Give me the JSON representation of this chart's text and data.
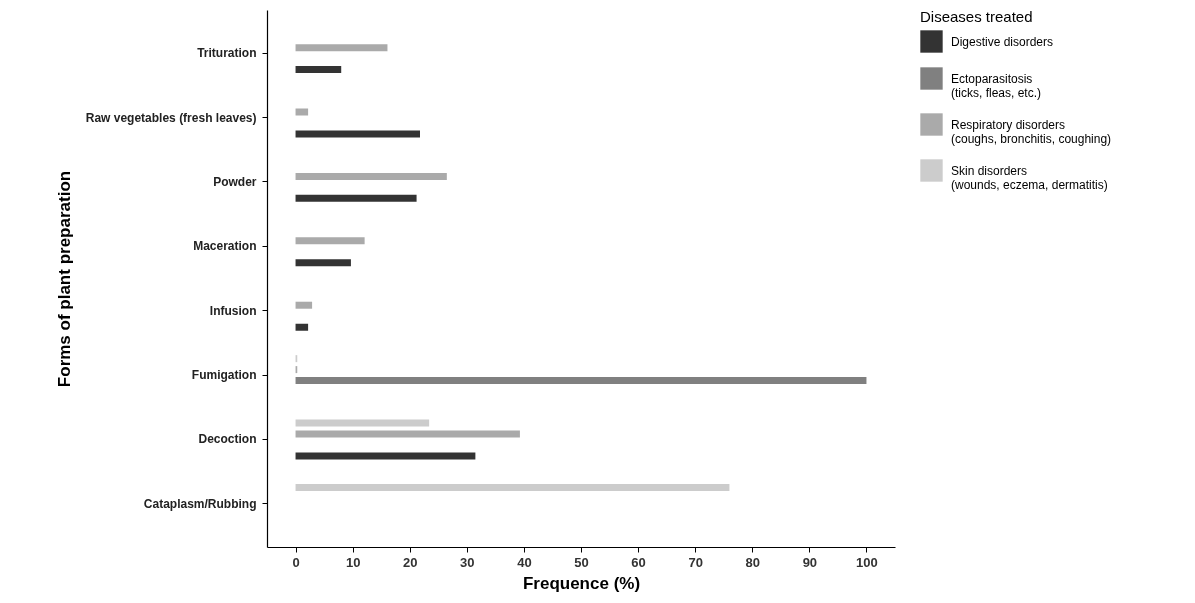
{
  "chart_data": {
    "type": "bar",
    "orientation": "horizontal",
    "xlabel": "Frequence (%)",
    "ylabel": "Forms of plant preparation",
    "legend_title": "Diseases treated",
    "legend": "right",
    "categories": [
      "Trituration",
      "Raw vegetables (fresh leaves)",
      "Powder",
      "Maceration",
      "Infusion",
      "Fumigation",
      "Decoction",
      "Cataplasm/Rubbing"
    ],
    "xlim": [
      -5,
      105
    ],
    "xticks": [
      0,
      10,
      20,
      30,
      40,
      50,
      60,
      70,
      80,
      90,
      100
    ],
    "series": [
      {
        "name": "Digestive disorders",
        "color": "#333333",
        "values": [
          8,
          21.8,
          21.2,
          9.7,
          2.2,
          null,
          31.5,
          null
        ]
      },
      {
        "name": "Ectoparasitosis\n (ticks, fleas, etc.)",
        "color": "#808080",
        "values": [
          null,
          null,
          null,
          null,
          null,
          100,
          null,
          null
        ]
      },
      {
        "name": "Respiratory disorders\n (coughs, bronchitis, coughing)",
        "color": "#aaaaaa",
        "values": [
          16.1,
          2.2,
          26.5,
          12.1,
          2.9,
          0.3,
          39.3,
          null
        ]
      },
      {
        "name": "Skin disorders\n (wounds, eczema, dermatitis)",
        "color": "#cccccc",
        "values": [
          null,
          null,
          null,
          null,
          null,
          0.3,
          23.4,
          76
        ]
      }
    ]
  }
}
